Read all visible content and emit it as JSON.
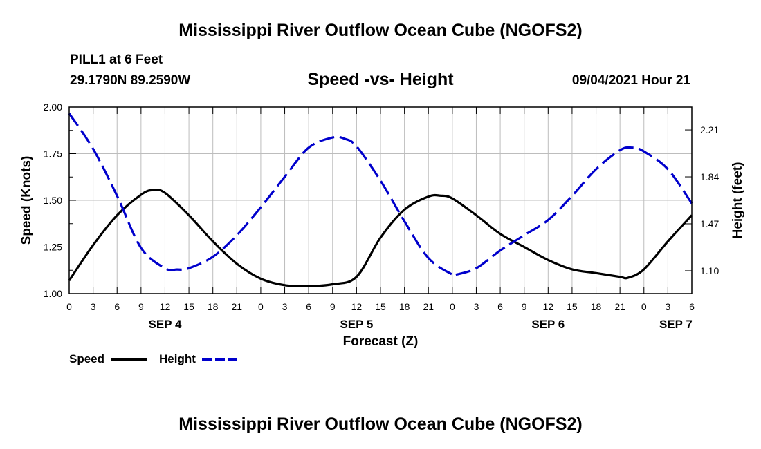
{
  "header": {
    "title": "Mississippi River Outflow Ocean Cube (NGOFS2)",
    "station": "PILL1 at 6 Feet",
    "coords": "29.1790N  89.2590W",
    "subtitle": "Speed -vs- Height",
    "datetime": "09/04/2021 Hour 21"
  },
  "footer": {
    "title": "Mississippi River Outflow Ocean Cube (NGOFS2)"
  },
  "chart_data": {
    "type": "line",
    "title": "Speed -vs- Height",
    "xlabel": "Forecast (Z)",
    "ylabel": "Speed (Knots)",
    "y2label": "Height (feet)",
    "xlim": [
      0,
      78
    ],
    "ylim": [
      1.0,
      2.0
    ],
    "y2lim": [
      0.92,
      2.39
    ],
    "x_tick_values": [
      0,
      3,
      6,
      9,
      12,
      15,
      18,
      21,
      24,
      27,
      30,
      33,
      36,
      39,
      42,
      45,
      48,
      51,
      54,
      57,
      60,
      63,
      66,
      69,
      72,
      75,
      78
    ],
    "x_tick_labels": [
      "0",
      "3",
      "6",
      "9",
      "12",
      "15",
      "18",
      "21",
      "0",
      "3",
      "6",
      "9",
      "12",
      "15",
      "18",
      "21",
      "0",
      "3",
      "6",
      "9",
      "12",
      "15",
      "18",
      "21",
      "0",
      "3",
      "6"
    ],
    "date_labels": [
      {
        "x": 12,
        "label": "SEP 4"
      },
      {
        "x": 36,
        "label": "SEP 5"
      },
      {
        "x": 60,
        "label": "SEP 6"
      },
      {
        "x": 76,
        "label": "SEP 7"
      }
    ],
    "y_ticks": [
      {
        "value": 1.0,
        "label": "1.00"
      },
      {
        "value": 1.25,
        "label": "1.25"
      },
      {
        "value": 1.5,
        "label": "1.50"
      },
      {
        "value": 1.75,
        "label": "1.75"
      },
      {
        "value": 2.0,
        "label": "2.00"
      }
    ],
    "y2_ticks": [
      {
        "value": 1.1,
        "label": "1.10"
      },
      {
        "value": 1.47,
        "label": "1.47"
      },
      {
        "value": 1.84,
        "label": "1.84"
      },
      {
        "value": 2.21,
        "label": "2.21"
      }
    ],
    "series": [
      {
        "name": "Speed",
        "axis": "left",
        "color": "#000000",
        "style": "solid",
        "x": [
          0,
          3,
          6,
          9,
          10.5,
          12,
          15,
          18,
          21,
          24,
          27,
          30,
          33,
          36,
          39,
          42,
          45,
          46.5,
          48,
          51,
          54,
          57,
          60,
          63,
          66,
          69,
          70,
          72,
          75,
          78
        ],
        "y": [
          1.07,
          1.26,
          1.42,
          1.53,
          1.555,
          1.54,
          1.42,
          1.28,
          1.16,
          1.08,
          1.045,
          1.04,
          1.05,
          1.09,
          1.3,
          1.45,
          1.52,
          1.525,
          1.51,
          1.42,
          1.32,
          1.25,
          1.18,
          1.13,
          1.11,
          1.09,
          1.085,
          1.13,
          1.28,
          1.42
        ]
      },
      {
        "name": "Height",
        "axis": "right",
        "color": "#0000cc",
        "style": "dashed",
        "x": [
          0,
          3,
          6,
          9,
          12,
          13.5,
          15,
          18,
          21,
          24,
          27,
          30,
          33,
          34.5,
          36,
          39,
          42,
          45,
          48,
          48.5,
          51,
          54,
          57,
          60,
          63,
          66,
          69,
          70.5,
          72,
          75,
          78
        ],
        "y": [
          2.34,
          2.06,
          1.69,
          1.28,
          1.12,
          1.11,
          1.12,
          1.21,
          1.38,
          1.6,
          1.84,
          2.07,
          2.15,
          2.14,
          2.08,
          1.81,
          1.49,
          1.2,
          1.07,
          1.07,
          1.12,
          1.26,
          1.38,
          1.5,
          1.69,
          1.9,
          2.05,
          2.07,
          2.04,
          1.9,
          1.63
        ]
      }
    ],
    "legend": [
      {
        "label": "Speed",
        "color": "#000000",
        "style": "solid"
      },
      {
        "label": "Height",
        "color": "#0000cc",
        "style": "dashed"
      }
    ],
    "legend_position": "bottom-left"
  }
}
